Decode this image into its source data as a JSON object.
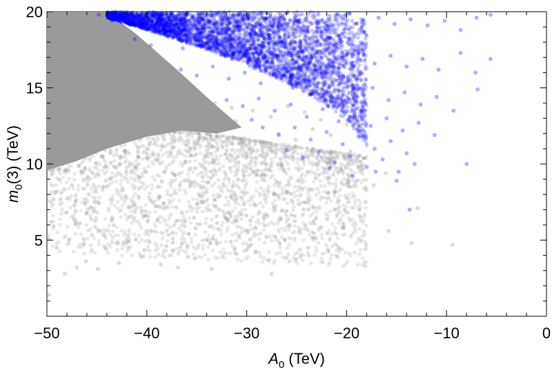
{
  "chart_data": {
    "type": "scatter",
    "title": "",
    "xlabel": {
      "var": "A",
      "sub": "0",
      "unit": " (TeV)"
    },
    "ylabel": {
      "var": "m",
      "sub": "0",
      "arg": "(3)",
      "unit": " (TeV)"
    },
    "xlim": [
      -50,
      0
    ],
    "ylim": [
      0,
      20
    ],
    "x_ticks": [
      -50,
      -40,
      -30,
      -20,
      -10,
      0
    ],
    "x_tick_labels": [
      "−50",
      "−40",
      "−30",
      "−20",
      "−10",
      "0"
    ],
    "y_ticks": [
      5,
      10,
      15,
      20
    ],
    "y_tick_labels": [
      "5",
      "10",
      "15",
      "20"
    ],
    "grid": false,
    "legend": "none",
    "series": [
      {
        "color": "#9a9a9a",
        "opacity": 0.35,
        "points": [
          [
            -49.8,
            1.4
          ],
          [
            -48.2,
            2.8
          ],
          [
            -47.0,
            3.2
          ],
          [
            -46.1,
            3.6
          ],
          [
            -44.9,
            3.1
          ],
          [
            -42.8,
            3.5
          ],
          [
            -40.5,
            3.9
          ],
          [
            -38.6,
            3.4
          ],
          [
            -36.9,
            3.2
          ],
          [
            -35.2,
            3.8
          ],
          [
            -33.5,
            3.1
          ],
          [
            -31.2,
            4.4
          ],
          [
            -29.1,
            4.2
          ],
          [
            -27.5,
            2.8
          ],
          [
            -23.8,
            4.0
          ],
          [
            -49.0,
            4.5
          ],
          [
            -47.8,
            5.0
          ],
          [
            -46.3,
            4.7
          ],
          [
            -44.2,
            5.3
          ],
          [
            -41.9,
            4.9
          ],
          [
            -39.5,
            5.6
          ],
          [
            -37.4,
            5.1
          ],
          [
            -35.8,
            5.4
          ],
          [
            -33.7,
            5.9
          ],
          [
            -31.6,
            4.9
          ],
          [
            -29.9,
            5.5
          ],
          [
            -27.1,
            5.2
          ],
          [
            -25.7,
            6.0
          ],
          [
            -23.1,
            6.4
          ],
          [
            -21.2,
            7.0
          ],
          [
            -20.3,
            5.8
          ],
          [
            -49.6,
            6.2
          ],
          [
            -48.1,
            6.8
          ],
          [
            -46.7,
            6.1
          ],
          [
            -45.2,
            6.9
          ],
          [
            -43.5,
            6.4
          ],
          [
            -41.8,
            7.2
          ],
          [
            -40.1,
            6.6
          ],
          [
            -38.3,
            7.4
          ],
          [
            -36.5,
            6.8
          ],
          [
            -34.6,
            7.5
          ],
          [
            -32.8,
            7.0
          ],
          [
            -31.0,
            7.7
          ],
          [
            -29.2,
            7.3
          ],
          [
            -27.3,
            8.0
          ],
          [
            -25.5,
            7.6
          ],
          [
            -23.6,
            8.3
          ],
          [
            -21.9,
            8.1
          ],
          [
            -19.8,
            8.8
          ],
          [
            -18.1,
            7.5
          ],
          [
            -17.3,
            8.6
          ],
          [
            -16.1,
            9.4
          ],
          [
            -49.2,
            8.1
          ],
          [
            -47.5,
            8.6
          ],
          [
            -45.8,
            8.0
          ],
          [
            -44.1,
            8.9
          ],
          [
            -42.4,
            8.3
          ],
          [
            -40.7,
            9.1
          ],
          [
            -38.9,
            8.5
          ],
          [
            -37.2,
            9.3
          ],
          [
            -35.4,
            8.8
          ],
          [
            -33.6,
            9.5
          ],
          [
            -31.8,
            9.0
          ],
          [
            -30.1,
            9.8
          ],
          [
            -28.3,
            9.3
          ],
          [
            -26.5,
            10.0
          ],
          [
            -24.8,
            9.6
          ],
          [
            -23.0,
            10.4
          ],
          [
            -21.2,
            10.1
          ],
          [
            -19.6,
            10.8
          ],
          [
            -18.0,
            11.2
          ],
          [
            -49.7,
            9.6
          ],
          [
            -48.0,
            10.2
          ],
          [
            -46.2,
            9.7
          ],
          [
            -44.4,
            10.5
          ],
          [
            -42.7,
            10.0
          ],
          [
            -40.9,
            10.8
          ],
          [
            -39.1,
            10.3
          ],
          [
            -37.3,
            11.1
          ],
          [
            -35.6,
            10.6
          ],
          [
            -33.8,
            11.4
          ],
          [
            -32.0,
            10.9
          ],
          [
            -30.3,
            11.7
          ],
          [
            -28.5,
            11.3
          ],
          [
            -26.8,
            12.0
          ],
          [
            -25.1,
            11.6
          ],
          [
            -23.4,
            12.3
          ],
          [
            -21.6,
            11.9
          ],
          [
            -20.0,
            12.6
          ],
          [
            -48.8,
            11.5
          ],
          [
            -47.0,
            12.0
          ],
          [
            -45.3,
            11.6
          ],
          [
            -43.5,
            12.3
          ],
          [
            -41.7,
            11.9
          ],
          [
            -40.0,
            12.6
          ],
          [
            -38.2,
            12.2
          ],
          [
            -36.4,
            12.9
          ],
          [
            -34.7,
            12.5
          ],
          [
            -32.9,
            13.2
          ],
          [
            -31.1,
            12.8
          ],
          [
            -29.4,
            13.5
          ],
          [
            -27.6,
            13.1
          ],
          [
            -25.9,
            13.8
          ],
          [
            -24.2,
            13.4
          ],
          [
            -22.6,
            12.9
          ],
          [
            -35.0,
            13.6
          ],
          [
            -33.2,
            14.0
          ],
          [
            -31.5,
            13.7
          ],
          [
            -13.5,
            4.8
          ],
          [
            -9.4,
            4.7
          ],
          [
            -15.8,
            5.6
          ],
          [
            -18.6,
            6.5
          ],
          [
            -12.9,
            7.1
          ]
        ]
      },
      {
        "color": "#0000ff",
        "opacity": 0.3,
        "points": [
          [
            -44.8,
            19.8
          ],
          [
            -43.5,
            19.4
          ],
          [
            -42.0,
            19.6
          ],
          [
            -40.6,
            19.2
          ],
          [
            -39.1,
            19.7
          ],
          [
            -37.6,
            19.3
          ],
          [
            -36.0,
            19.8
          ],
          [
            -34.5,
            19.5
          ],
          [
            -33.0,
            19.9
          ],
          [
            -31.4,
            19.6
          ],
          [
            -29.8,
            19.7
          ],
          [
            -28.2,
            19.5
          ],
          [
            -26.6,
            19.8
          ],
          [
            -25.0,
            19.4
          ],
          [
            -23.4,
            19.7
          ],
          [
            -21.7,
            19.5
          ],
          [
            -20.1,
            19.8
          ],
          [
            -18.5,
            19.3
          ],
          [
            -16.8,
            19.6
          ],
          [
            -15.2,
            19.2
          ],
          [
            -13.6,
            19.5
          ],
          [
            -11.9,
            19.1
          ],
          [
            -10.2,
            19.4
          ],
          [
            -8.6,
            18.8
          ],
          [
            -7.0,
            19.6
          ],
          [
            -5.6,
            19.8
          ],
          [
            -41.2,
            18.2
          ],
          [
            -39.6,
            17.8
          ],
          [
            -38.0,
            18.4
          ],
          [
            -36.4,
            17.6
          ],
          [
            -34.8,
            18.1
          ],
          [
            -33.2,
            17.4
          ],
          [
            -31.6,
            17.9
          ],
          [
            -30.0,
            17.2
          ],
          [
            -28.4,
            17.7
          ],
          [
            -26.8,
            17.1
          ],
          [
            -25.2,
            17.6
          ],
          [
            -23.6,
            17.0
          ],
          [
            -22.0,
            17.5
          ],
          [
            -20.4,
            16.8
          ],
          [
            -18.8,
            17.3
          ],
          [
            -17.2,
            16.6
          ],
          [
            -15.6,
            17.1
          ],
          [
            -14.0,
            16.4
          ],
          [
            -12.4,
            16.9
          ],
          [
            -10.8,
            16.2
          ],
          [
            -8.6,
            17.3
          ],
          [
            -7.1,
            16.0
          ],
          [
            -5.6,
            16.9
          ],
          [
            -36.6,
            16.2
          ],
          [
            -35.0,
            15.8
          ],
          [
            -33.4,
            16.4
          ],
          [
            -31.8,
            15.6
          ],
          [
            -30.2,
            16.0
          ],
          [
            -28.6,
            15.3
          ],
          [
            -27.0,
            15.8
          ],
          [
            -25.4,
            15.0
          ],
          [
            -23.8,
            15.5
          ],
          [
            -22.2,
            14.8
          ],
          [
            -20.6,
            15.3
          ],
          [
            -19.0,
            14.5
          ],
          [
            -17.4,
            15.0
          ],
          [
            -15.8,
            14.2
          ],
          [
            -14.2,
            14.7
          ],
          [
            -12.6,
            13.9
          ],
          [
            -11.0,
            14.4
          ],
          [
            -9.3,
            13.5
          ],
          [
            -6.9,
            14.9
          ],
          [
            -32.0,
            14.2
          ],
          [
            -30.4,
            13.8
          ],
          [
            -28.8,
            14.3
          ],
          [
            -27.2,
            13.5
          ],
          [
            -25.6,
            13.9
          ],
          [
            -24.0,
            13.1
          ],
          [
            -22.4,
            13.6
          ],
          [
            -20.8,
            12.8
          ],
          [
            -19.2,
            13.3
          ],
          [
            -17.6,
            12.5
          ],
          [
            -16.0,
            13.0
          ],
          [
            -14.4,
            12.2
          ],
          [
            -12.8,
            12.7
          ],
          [
            -11.2,
            11.9
          ],
          [
            -28.4,
            12.4
          ],
          [
            -26.8,
            11.9
          ],
          [
            -25.2,
            12.4
          ],
          [
            -23.6,
            11.6
          ],
          [
            -22.0,
            12.1
          ],
          [
            -20.4,
            11.3
          ],
          [
            -18.8,
            11.8
          ],
          [
            -17.2,
            11.0
          ],
          [
            -15.6,
            11.5
          ],
          [
            -14.0,
            10.7
          ],
          [
            -26.0,
            10.9
          ],
          [
            -24.4,
            10.4
          ],
          [
            -22.8,
            10.8
          ],
          [
            -21.2,
            10.1
          ],
          [
            -19.6,
            10.5
          ],
          [
            -18.0,
            9.8
          ],
          [
            -16.4,
            10.3
          ],
          [
            -14.8,
            9.5
          ],
          [
            -13.2,
            10.0
          ],
          [
            -8.0,
            10.0
          ],
          [
            -17.1,
            9.5
          ],
          [
            -15.0,
            8.9
          ],
          [
            -13.7,
            7.0
          ],
          [
            -19.4,
            9.2
          ],
          [
            -21.7,
            9.7
          ],
          [
            -29.5,
            12.9
          ]
        ]
      }
    ]
  }
}
